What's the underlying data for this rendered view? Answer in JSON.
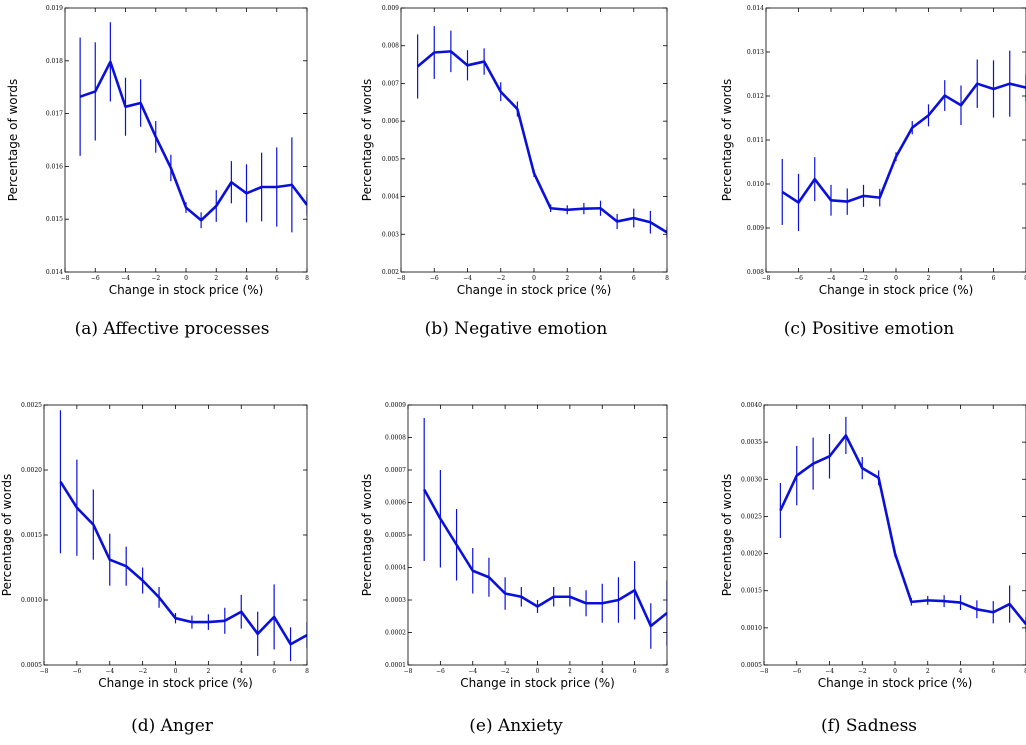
{
  "colors": {
    "line": "#0a10d8",
    "axes": "#000000"
  },
  "chart_data": [
    {
      "type": "line",
      "caption": "(a) Affective processes",
      "xlabel": "Change in stock price (%)",
      "ylabel": "Percentage of words",
      "xlim": [
        -8,
        8
      ],
      "ylim": [
        0.014,
        0.019
      ],
      "xticks": [
        -8,
        -6,
        -4,
        -2,
        0,
        2,
        4,
        6,
        8
      ],
      "yticks": [
        0.014,
        0.015,
        0.016,
        0.017,
        0.018,
        0.019
      ],
      "ytick_labels": [
        "0.014",
        "0.015",
        "0.016",
        "0.017",
        "0.018",
        "0.019"
      ],
      "x": [
        -7,
        -6,
        -5,
        -4,
        -3,
        -2,
        -1,
        0,
        1,
        2,
        3,
        4,
        5,
        6,
        7,
        8
      ],
      "y": [
        0.01732,
        0.01742,
        0.01798,
        0.01713,
        0.0172,
        0.01656,
        0.01597,
        0.01522,
        0.01498,
        0.01525,
        0.0157,
        0.01549,
        0.01561,
        0.01561,
        0.01565,
        0.01527
      ],
      "err": [
        0.00112,
        0.00093,
        0.00075,
        0.00055,
        0.00045,
        0.0003,
        0.00025,
        0.0001,
        0.00015,
        0.0003,
        0.0004,
        0.00055,
        0.00065,
        0.00075,
        0.0009,
        0.0002
      ]
    },
    {
      "type": "line",
      "caption": "(b) Negative emotion",
      "xlabel": "Change in stock price (%)",
      "ylabel": "Percentage of words",
      "xlim": [
        -8,
        8
      ],
      "ylim": [
        0.002,
        0.009
      ],
      "xticks": [
        -8,
        -6,
        -4,
        -2,
        0,
        2,
        4,
        6,
        8
      ],
      "yticks": [
        0.002,
        0.003,
        0.004,
        0.005,
        0.006,
        0.007,
        0.008,
        0.009
      ],
      "ytick_labels": [
        "0.002",
        "0.003",
        "0.004",
        "0.005",
        "0.006",
        "0.007",
        "0.008",
        "0.009"
      ],
      "x": [
        -7,
        -6,
        -5,
        -4,
        -3,
        -2,
        -1,
        0,
        1,
        2,
        3,
        4,
        5,
        6,
        7,
        8
      ],
      "y": [
        0.00745,
        0.00782,
        0.00785,
        0.00748,
        0.00758,
        0.00678,
        0.00632,
        0.00462,
        0.00369,
        0.00365,
        0.00368,
        0.00369,
        0.00334,
        0.00343,
        0.00332,
        0.00305
      ],
      "err": [
        0.00085,
        0.0007,
        0.00055,
        0.0004,
        0.00035,
        0.00025,
        0.0002,
        0.0001,
        0.0001,
        0.00012,
        0.00015,
        0.0002,
        0.0002,
        0.00025,
        0.0003,
        0.00015
      ]
    },
    {
      "type": "line",
      "caption": "(c) Positive emotion",
      "xlabel": "Change in stock price (%)",
      "ylabel": "Percentage of words",
      "xlim": [
        -8,
        8
      ],
      "ylim": [
        0.008,
        0.014
      ],
      "xticks": [
        -8,
        -6,
        -4,
        -2,
        0,
        2,
        4,
        6,
        8
      ],
      "yticks": [
        0.008,
        0.009,
        0.01,
        0.011,
        0.012,
        0.013,
        0.014
      ],
      "ytick_labels": [
        "0.008",
        "0.009",
        "0.010",
        "0.011",
        "0.012",
        "0.013",
        "0.014"
      ],
      "x": [
        -7,
        -6,
        -5,
        -4,
        -3,
        -2,
        -1,
        0,
        1,
        2,
        3,
        4,
        5,
        6,
        7,
        8
      ],
      "y": [
        0.00982,
        0.00958,
        0.01011,
        0.00963,
        0.0096,
        0.00973,
        0.00969,
        0.01062,
        0.01128,
        0.01156,
        0.01201,
        0.01179,
        0.01228,
        0.01216,
        0.01228,
        0.01219
      ],
      "err": [
        0.00075,
        0.00065,
        0.0005,
        0.00035,
        0.0003,
        0.00025,
        0.0002,
        0.0001,
        0.00015,
        0.00025,
        0.00035,
        0.00045,
        0.00055,
        0.00065,
        0.00075,
        0.0003
      ]
    },
    {
      "type": "line",
      "caption": "(d) Anger",
      "xlabel": "Change in stock price (%)",
      "ylabel": "Percentage of words",
      "xlim": [
        -8,
        8
      ],
      "ylim": [
        0.0005,
        0.0025
      ],
      "xticks": [
        -8,
        -6,
        -4,
        -2,
        0,
        2,
        4,
        6,
        8
      ],
      "yticks": [
        0.0005,
        0.001,
        0.0015,
        0.002,
        0.0025
      ],
      "ytick_labels": [
        "0.0005",
        "0.0010",
        "0.0015",
        "0.0020",
        "0.0025"
      ],
      "x": [
        -7,
        -6,
        -5,
        -4,
        -3,
        -2,
        -1,
        0,
        1,
        2,
        3,
        4,
        5,
        6,
        7,
        8
      ],
      "y": [
        0.00191,
        0.00171,
        0.00158,
        0.00131,
        0.00126,
        0.00115,
        0.00102,
        0.00086,
        0.00083,
        0.00083,
        0.00084,
        0.00091,
        0.00074,
        0.00087,
        0.00066,
        0.00073
      ],
      "err": [
        0.00055,
        0.00037,
        0.00027,
        0.0002,
        0.00015,
        0.0001,
        8e-05,
        4e-05,
        5e-05,
        6e-05,
        0.0001,
        0.00013,
        0.00017,
        0.00025,
        0.00013,
        0.0001
      ]
    },
    {
      "type": "line",
      "caption": "(e) Anxiety",
      "xlabel": "Change in stock price (%)",
      "ylabel": "Percentage of words",
      "xlim": [
        -8,
        8
      ],
      "ylim": [
        0.0001,
        0.0009
      ],
      "xticks": [
        -8,
        -6,
        -4,
        -2,
        0,
        2,
        4,
        6,
        8
      ],
      "yticks": [
        0.0001,
        0.0002,
        0.0003,
        0.0004,
        0.0005,
        0.0006,
        0.0007,
        0.0008,
        0.0009
      ],
      "ytick_labels": [
        "0.0001",
        "0.0002",
        "0.0003",
        "0.0004",
        "0.0005",
        "0.0006",
        "0.0007",
        "0.0008",
        "0.0009"
      ],
      "x": [
        -7,
        -6,
        -5,
        -4,
        -3,
        -2,
        -1,
        0,
        1,
        2,
        3,
        4,
        5,
        6,
        7,
        8
      ],
      "y": [
        0.00064,
        0.00055,
        0.00047,
        0.00039,
        0.00037,
        0.00032,
        0.00031,
        0.00028,
        0.00031,
        0.00031,
        0.00029,
        0.00029,
        0.0003,
        0.00033,
        0.00022,
        0.00026
      ],
      "err": [
        0.00022,
        0.00015,
        0.00011,
        7e-05,
        6e-05,
        5e-05,
        3e-05,
        2e-05,
        3e-05,
        3e-05,
        4e-05,
        6e-05,
        7e-05,
        9e-05,
        7e-05,
        0.0001
      ]
    },
    {
      "type": "line",
      "caption": "(f) Sadness",
      "xlabel": "Change in stock price (%)",
      "ylabel": "Percentage of words",
      "xlim": [
        -8,
        8
      ],
      "ylim": [
        0.0005,
        0.004
      ],
      "xticks": [
        -8,
        -6,
        -4,
        -2,
        0,
        2,
        4,
        6,
        8
      ],
      "yticks": [
        0.0005,
        0.001,
        0.0015,
        0.002,
        0.0025,
        0.003,
        0.0035,
        0.004
      ],
      "ytick_labels": [
        "0.0005",
        "0.0010",
        "0.0015",
        "0.0020",
        "0.0025",
        "0.0030",
        "0.0035",
        "0.0040"
      ],
      "x": [
        -7,
        -6,
        -5,
        -4,
        -3,
        -2,
        -1,
        0,
        1,
        2,
        3,
        4,
        5,
        6,
        7,
        8
      ],
      "y": [
        0.00258,
        0.00305,
        0.00321,
        0.00331,
        0.00359,
        0.00315,
        0.00302,
        0.002,
        0.00135,
        0.00137,
        0.00136,
        0.00134,
        0.00125,
        0.00121,
        0.00132,
        0.00105
      ],
      "err": [
        0.00037,
        0.0004,
        0.00035,
        0.0003,
        0.00025,
        0.00015,
        0.0001,
        5e-05,
        5e-05,
        6e-05,
        8e-05,
        0.0001,
        0.00012,
        0.00015,
        0.00025,
        0.0001
      ]
    }
  ]
}
